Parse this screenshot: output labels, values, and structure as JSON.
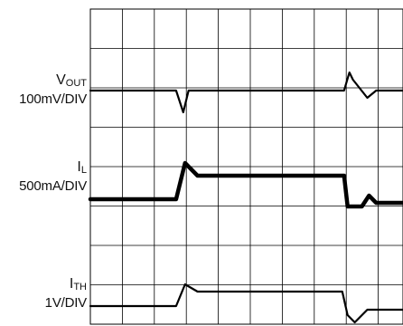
{
  "chart_data": {
    "type": "line",
    "title": "",
    "grid": true,
    "x": [
      0,
      0.5,
      1,
      1.5,
      2,
      2.5,
      3,
      3.5,
      4,
      4.5,
      5,
      5.5,
      6,
      6.5,
      7,
      7.5,
      8,
      8.5,
      9,
      9.5,
      10
    ],
    "series": [
      {
        "name": "V_OUT",
        "scale": "100mV/DIV",
        "color": "#000000",
        "values": [
          0,
          0,
          0,
          0,
          0,
          0,
          0,
          0,
          -0.05,
          0.05,
          0.06,
          0.04,
          0.03,
          0.03,
          0.02,
          0.02,
          0.02,
          0.02,
          0.02,
          0.02,
          0.02
        ]
      },
      {
        "name": "I_L",
        "scale": "500mA/DIV",
        "color": "#000000",
        "values": [
          0,
          0,
          0,
          0,
          0,
          0,
          0,
          0,
          0,
          0,
          0,
          0,
          0,
          0,
          0,
          0,
          0,
          0,
          0,
          0,
          0
        ]
      },
      {
        "name": "I_TH",
        "scale": "1V/DIV",
        "color": "#000000",
        "values": [
          0,
          0,
          0,
          0,
          0,
          0,
          0,
          0,
          0,
          0,
          0,
          0,
          0,
          0,
          0,
          0,
          0,
          0,
          0,
          0,
          0
        ]
      }
    ],
    "channels": [
      {
        "sym": "V",
        "sub": "OUT",
        "scale": "100mV/DIV"
      },
      {
        "sym": "I",
        "sub": "L",
        "scale": "500mA/DIV"
      },
      {
        "sym": "I",
        "sub": "TH",
        "scale": "1V/DIV"
      }
    ],
    "traces": {
      "vout": [
        [
          0,
          0
        ],
        [
          4.8,
          0
        ],
        [
          5.2,
          -1.2
        ],
        [
          5.5,
          0
        ],
        [
          5.8,
          0
        ],
        [
          10,
          0
        ],
        [
          14.2,
          0
        ],
        [
          14.5,
          1.0
        ],
        [
          14.7,
          0.6
        ],
        [
          15.5,
          -0.4
        ],
        [
          16.0,
          0
        ],
        [
          17.5,
          0
        ]
      ],
      "il": [
        [
          0,
          0
        ],
        [
          4.8,
          0
        ],
        [
          5.3,
          2.0
        ],
        [
          6.0,
          1.3
        ],
        [
          9.5,
          1.3
        ],
        [
          14.2,
          1.3
        ],
        [
          14.4,
          -0.4
        ],
        [
          15.2,
          -0.4
        ],
        [
          15.6,
          0.2
        ],
        [
          16.0,
          -0.2
        ],
        [
          17.5,
          -0.2
        ]
      ],
      "ith": [
        [
          0,
          0
        ],
        [
          4.8,
          0
        ],
        [
          5.3,
          1.2
        ],
        [
          6.0,
          0.8
        ],
        [
          9.5,
          0.8
        ],
        [
          14.1,
          0.8
        ],
        [
          14.4,
          -0.5
        ],
        [
          14.8,
          -0.9
        ],
        [
          15.5,
          -0.2
        ],
        [
          17.5,
          -0.2
        ]
      ]
    }
  }
}
